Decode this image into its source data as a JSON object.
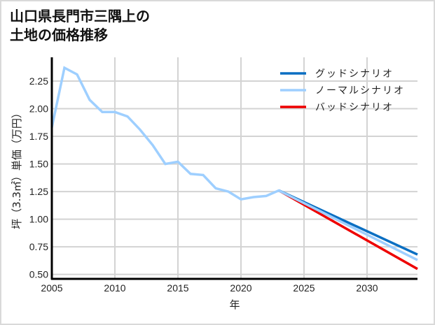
{
  "title": {
    "line1": "山口県長門市三隅上の",
    "line2": "土地の価格推移"
  },
  "chart_data": {
    "type": "line",
    "title": "山口県長門市三隅上の土地の価格推移",
    "xlabel": "年",
    "ylabel": "坪（3.3㎡）単価（万円）",
    "xlim": [
      2005,
      2034
    ],
    "ylim": [
      0.46,
      2.465
    ],
    "xticks": [
      2005,
      2010,
      2015,
      2020,
      2025,
      2030
    ],
    "yticks": [
      0.5,
      0.75,
      1.0,
      1.25,
      1.5,
      1.75,
      2.0,
      2.25
    ],
    "ytick_labels": [
      "0.50",
      "0.75",
      "1.00",
      "1.25",
      "1.50",
      "1.75",
      "2.00",
      "2.25"
    ],
    "grid": true,
    "legend_position": "upper right",
    "series": [
      {
        "name": "グッドシナリオ",
        "color": "#0a6fc2",
        "x": [
          2023,
          2034
        ],
        "values": [
          1.26,
          0.68
        ]
      },
      {
        "name": "ノーマルシナリオ",
        "color": "#9ecfff",
        "x": [
          2005,
          2006,
          2007,
          2008,
          2009,
          2010,
          2011,
          2012,
          2013,
          2014,
          2015,
          2016,
          2017,
          2018,
          2019,
          2020,
          2021,
          2022,
          2023,
          2034
        ],
        "values": [
          1.83,
          2.37,
          2.31,
          2.08,
          1.97,
          1.97,
          1.93,
          1.81,
          1.67,
          1.5,
          1.52,
          1.41,
          1.4,
          1.28,
          1.25,
          1.18,
          1.2,
          1.21,
          1.26,
          0.63
        ]
      },
      {
        "name": "バッドシナリオ",
        "color": "#ee0000",
        "x": [
          2023,
          2034
        ],
        "values": [
          1.26,
          0.55
        ]
      }
    ],
    "draw_order": [
      2,
      0,
      1
    ]
  },
  "colors": {
    "grid": "#d3d3d3",
    "axis": "#000000",
    "frame": "#d9d9d9"
  }
}
